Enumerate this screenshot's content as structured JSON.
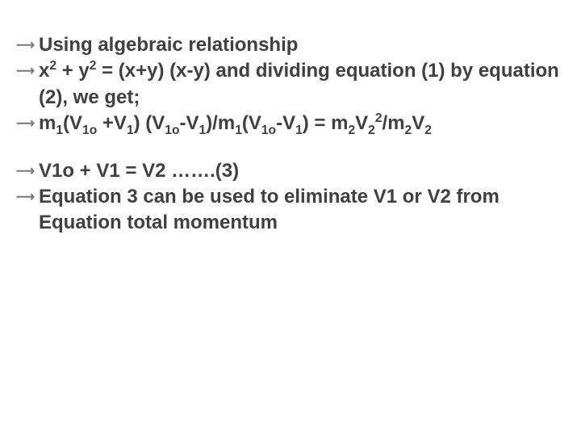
{
  "slide": {
    "bullet_marker": "⟶",
    "group1": {
      "b1": {
        "t1": "Using algebraic relationship"
      },
      "b2": {
        "t1": "x",
        "sup1": "2",
        "t2": " + y",
        "sup2": "2",
        "t3": " = (x+y) (x-y) and dividing equation (1) by equation (2), we get;"
      },
      "b3": {
        "t1": "m",
        "s1": "1",
        "t2": "(V",
        "s2": "1o",
        "t3": " +V",
        "s3": "1",
        "t4": ") (V",
        "s4": "1o",
        "t5": "-V",
        "s5": "1",
        "t6": ")/m",
        "s6": "1",
        "t7": "(V",
        "s7": "1o",
        "t8": "-V",
        "s8": "1",
        "t9": ") = m",
        "s9": "2",
        "t10": "V",
        "s10": "2",
        "sup10": "2",
        "t11": "/m",
        "s11": "2",
        "t12": "V",
        "s12": "2"
      }
    },
    "group2": {
      "b1": {
        "t1": "V1o + V1 = V2 …….(3)"
      },
      "b2": {
        "t1": "Equation 3 can be used to eliminate V1 or V2 from Equation total momentum"
      }
    }
  }
}
